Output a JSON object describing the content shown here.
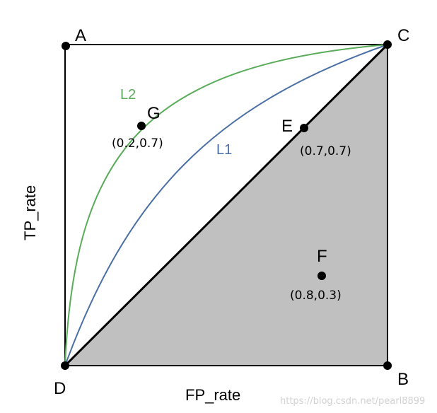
{
  "corners": {
    "A": "A",
    "B": "B",
    "C": "C",
    "D": "D"
  },
  "axes": {
    "x_label": "FP_rate",
    "y_label": "TP_rate"
  },
  "points": {
    "E": {
      "label": "E",
      "coord_text": "(0.7,0.7)",
      "fp": 0.7,
      "tp": 0.7
    },
    "F": {
      "label": "F",
      "coord_text": "(0.8,0.3)",
      "fp": 0.8,
      "tp": 0.3
    },
    "G": {
      "label": "G",
      "coord_text": "(0.2,0.7)",
      "fp": 0.2,
      "tp": 0.7
    }
  },
  "curves": {
    "L1": {
      "label": "L1",
      "color": "#4a6fa5"
    },
    "L2": {
      "label": "L2",
      "color": "#5aac5a"
    }
  },
  "colors": {
    "shaded_region": "#c0c0c0",
    "frame": "#000000"
  },
  "watermark": "https://blog.csdn.net/pearl8899"
}
